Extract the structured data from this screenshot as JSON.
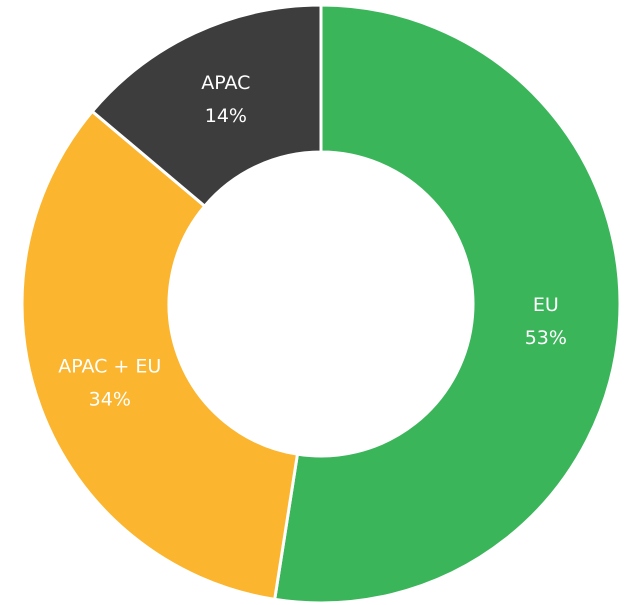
{
  "chart_data": {
    "type": "donut",
    "categories": [
      "EU",
      "APAC + EU",
      "APAC"
    ],
    "values": [
      53,
      34,
      14
    ],
    "value_labels": [
      "53%",
      "34%",
      "14%"
    ],
    "colors": [
      "#3bb55a",
      "#fbb52f",
      "#3d3d3d"
    ]
  }
}
